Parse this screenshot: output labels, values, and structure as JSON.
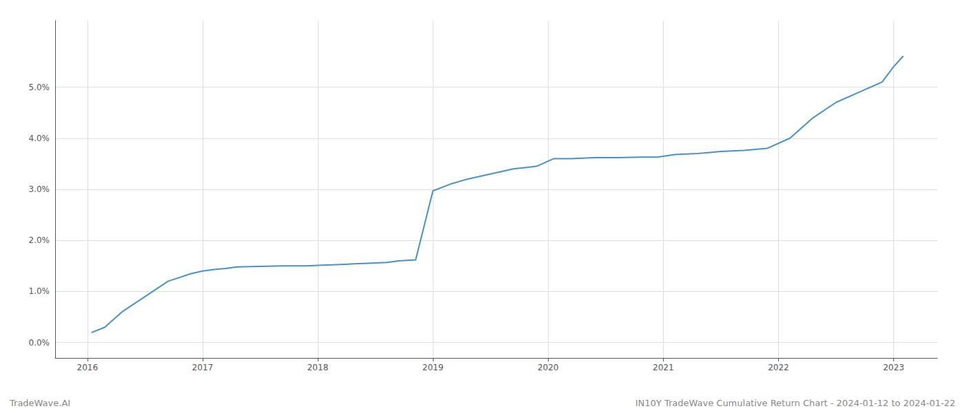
{
  "chart_data": {
    "type": "line",
    "x": [
      2016.04,
      2016.15,
      2016.3,
      2016.5,
      2016.7,
      2016.9,
      2017.0,
      2017.1,
      2017.2,
      2017.3,
      2017.5,
      2017.7,
      2017.9,
      2018.0,
      2018.2,
      2018.4,
      2018.6,
      2018.7,
      2018.85,
      2019.0,
      2019.15,
      2019.3,
      2019.5,
      2019.7,
      2019.9,
      2020.05,
      2020.2,
      2020.4,
      2020.6,
      2020.8,
      2020.95,
      2021.1,
      2021.3,
      2021.5,
      2021.7,
      2021.9,
      2022.1,
      2022.3,
      2022.5,
      2022.7,
      2022.9,
      2023.0,
      2023.08
    ],
    "values": [
      0.002,
      0.003,
      0.006,
      0.009,
      0.012,
      0.0135,
      0.014,
      0.0143,
      0.0145,
      0.0148,
      0.0149,
      0.015,
      0.015,
      0.0151,
      0.0153,
      0.0155,
      0.0157,
      0.016,
      0.0162,
      0.0297,
      0.031,
      0.032,
      0.033,
      0.034,
      0.0345,
      0.036,
      0.036,
      0.0362,
      0.0362,
      0.0363,
      0.0363,
      0.0368,
      0.037,
      0.0374,
      0.0376,
      0.038,
      0.04,
      0.044,
      0.047,
      0.049,
      0.051,
      0.054,
      0.056
    ],
    "color": "#4a90c4",
    "xlim": [
      2015.72,
      2023.38
    ],
    "xticks": [
      2016,
      2017,
      2018,
      2019,
      2020,
      2021,
      2022,
      2023
    ],
    "ylim": [
      -0.003,
      0.063
    ],
    "yticks": [
      {
        "value": 0.0,
        "label": "0.0%"
      },
      {
        "value": 0.01,
        "label": "1.0%"
      },
      {
        "value": 0.02,
        "label": "2.0%"
      },
      {
        "value": 0.03,
        "label": "3.0%"
      },
      {
        "value": 0.04,
        "label": "4.0%"
      },
      {
        "value": 0.05,
        "label": "5.0%"
      }
    ],
    "grid": true,
    "annotations": [
      "TradeWave.AI",
      "IN10Y TradeWave Cumulative Return Chart - 2024-01-12 to 2024-01-22"
    ]
  }
}
